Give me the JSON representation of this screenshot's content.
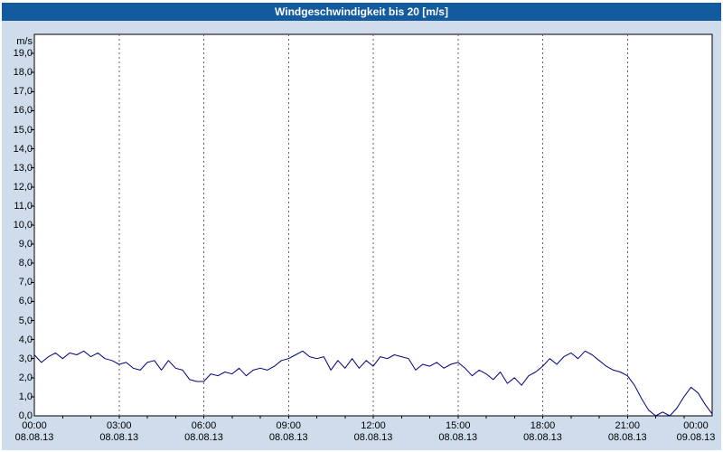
{
  "chart_data": {
    "type": "line",
    "title": "Windgeschwindigkeit bis 20 [m/s]",
    "ylabel": "m/s",
    "ylim": [
      0,
      20
    ],
    "xlim_hours": [
      0,
      24
    ],
    "grid_on": true,
    "grid_hours": [
      3,
      6,
      9,
      12,
      15,
      18,
      21
    ],
    "y_ticks": [
      {
        "value": 0,
        "label": "0,0"
      },
      {
        "value": 1,
        "label": "1,0"
      },
      {
        "value": 2,
        "label": "2,0"
      },
      {
        "value": 3,
        "label": "3,0"
      },
      {
        "value": 4,
        "label": "4,0"
      },
      {
        "value": 5,
        "label": "5,0"
      },
      {
        "value": 6,
        "label": "6,0"
      },
      {
        "value": 7,
        "label": "7,0"
      },
      {
        "value": 8,
        "label": "8,0"
      },
      {
        "value": 9,
        "label": "9,0"
      },
      {
        "value": 10,
        "label": "10,0"
      },
      {
        "value": 11,
        "label": "11,0"
      },
      {
        "value": 12,
        "label": "12,0"
      },
      {
        "value": 13,
        "label": "13,0"
      },
      {
        "value": 14,
        "label": "14,0"
      },
      {
        "value": 15,
        "label": "15,0"
      },
      {
        "value": 16,
        "label": "16,0"
      },
      {
        "value": 17,
        "label": "17,0"
      },
      {
        "value": 18,
        "label": "18,0"
      },
      {
        "value": 19,
        "label": "19,0"
      }
    ],
    "x_ticks": [
      {
        "hour": 0,
        "time": "00:00",
        "date": "08.08.13"
      },
      {
        "hour": 3,
        "time": "03:00",
        "date": "08.08.13"
      },
      {
        "hour": 6,
        "time": "06:00",
        "date": "08.08.13"
      },
      {
        "hour": 9,
        "time": "09:00",
        "date": "08.08.13"
      },
      {
        "hour": 12,
        "time": "12:00",
        "date": "08.08.13"
      },
      {
        "hour": 15,
        "time": "15:00",
        "date": "08.08.13"
      },
      {
        "hour": 18,
        "time": "18:00",
        "date": "08.08.13"
      },
      {
        "hour": 21,
        "time": "21:00",
        "date": "08.08.13"
      },
      {
        "hour": 24,
        "time": "00:00",
        "date": "09.08.13"
      }
    ],
    "x_start_hour": 0,
    "x_step_hours": 0.25,
    "series": [
      {
        "name": "Windgeschwindigkeit",
        "color": "#000080",
        "values": [
          3.2,
          2.8,
          3.1,
          3.3,
          3.0,
          3.3,
          3.2,
          3.4,
          3.1,
          3.3,
          3.0,
          2.9,
          2.7,
          2.8,
          2.5,
          2.4,
          2.8,
          2.9,
          2.4,
          2.9,
          2.5,
          2.4,
          1.9,
          1.8,
          1.8,
          2.2,
          2.1,
          2.3,
          2.2,
          2.5,
          2.1,
          2.4,
          2.5,
          2.4,
          2.6,
          2.9,
          3.0,
          3.2,
          3.4,
          3.1,
          3.0,
          3.1,
          2.4,
          2.9,
          2.5,
          3.0,
          2.5,
          2.9,
          2.6,
          3.1,
          3.0,
          3.2,
          3.1,
          3.0,
          2.4,
          2.7,
          2.6,
          2.8,
          2.5,
          2.7,
          2.8,
          2.5,
          2.1,
          2.4,
          2.2,
          1.9,
          2.3,
          1.7,
          2.0,
          1.6,
          2.1,
          2.3,
          2.6,
          3.0,
          2.7,
          3.1,
          3.3,
          3.0,
          3.4,
          3.2,
          2.9,
          2.6,
          2.4,
          2.3,
          2.1,
          1.6,
          0.9,
          0.3,
          0.0,
          0.2,
          0.0,
          0.4,
          1.0,
          1.5,
          1.2,
          0.6,
          0.1
        ]
      }
    ],
    "colors": {
      "titlebar_bg": "#135b9e",
      "outer_bg": "#cedcec",
      "plot_bg": "#ffffff",
      "axis": "#000000",
      "grid": "#606060",
      "line": "#000080"
    }
  }
}
